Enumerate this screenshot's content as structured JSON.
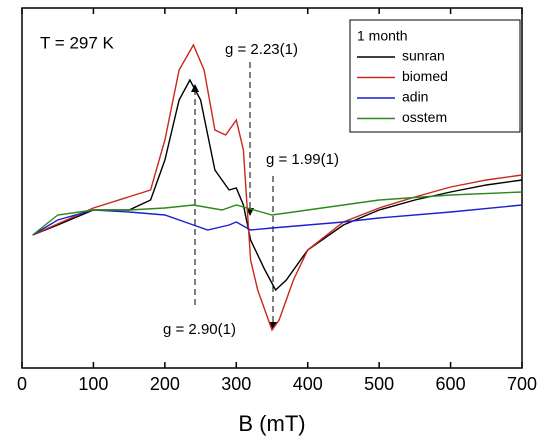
{
  "chart_data": {
    "type": "line",
    "annotations": [
      "T = 297 K",
      "g = 2.23(1)",
      "g = 1.99(1)",
      "g = 2.90(1)"
    ],
    "xlabel": "B (mT)",
    "legend_title": "1 month",
    "legend": "upper right",
    "xlim": [
      0,
      700
    ],
    "xticks": [
      0,
      100,
      200,
      300,
      400,
      500,
      600,
      700
    ],
    "ylim": [
      0,
      360
    ],
    "series": [
      {
        "name": "sunran",
        "color": "#000000",
        "x": [
          15,
          50,
          100,
          150,
          180,
          200,
          220,
          235,
          250,
          270,
          290,
          300,
          310,
          320,
          340,
          355,
          370,
          400,
          450,
          500,
          550,
          600,
          650,
          700
        ],
        "values": [
          133,
          143,
          158,
          158,
          168,
          208,
          268,
          288,
          268,
          198,
          178,
          180,
          163,
          128,
          98,
          78,
          88,
          118,
          143,
          158,
          168,
          176,
          183,
          188
        ]
      },
      {
        "name": "biomed",
        "color": "#c8281e",
        "x": [
          15,
          100,
          180,
          200,
          220,
          240,
          255,
          270,
          285,
          300,
          310,
          320,
          330,
          350,
          360,
          380,
          400,
          450,
          500,
          550,
          600,
          650,
          700
        ],
        "values": [
          133,
          160,
          178,
          228,
          298,
          323,
          298,
          238,
          233,
          248,
          218,
          108,
          78,
          38,
          48,
          88,
          118,
          146,
          160,
          171,
          181,
          188,
          193
        ]
      },
      {
        "name": "adin",
        "color": "#1f1fd0",
        "x": [
          15,
          50,
          100,
          150,
          200,
          240,
          260,
          290,
          300,
          320,
          350,
          400,
          450,
          500,
          600,
          700
        ],
        "values": [
          133,
          148,
          158,
          156,
          153,
          143,
          138,
          143,
          146,
          138,
          140,
          143,
          146,
          150,
          156,
          163
        ]
      },
      {
        "name": "osstem",
        "color": "#2a8a1a",
        "x": [
          15,
          50,
          100,
          150,
          200,
          240,
          280,
          300,
          350,
          400,
          450,
          500,
          600,
          700
        ],
        "values": [
          133,
          153,
          158,
          158,
          160,
          163,
          158,
          163,
          153,
          158,
          163,
          168,
          173,
          176
        ]
      }
    ]
  }
}
